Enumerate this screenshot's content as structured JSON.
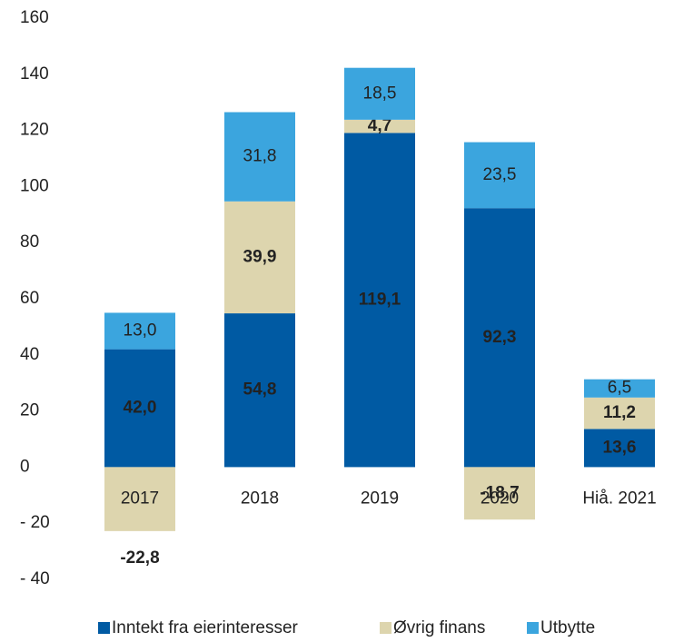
{
  "chart_data": {
    "type": "stacked_bar",
    "categories": [
      "2017",
      "2018",
      "2019",
      "2020",
      "Hiå. 2021"
    ],
    "series": [
      {
        "name": "Inntekt fra eierinteresser",
        "color": "#005aa3",
        "values": [
          42.0,
          54.8,
          119.1,
          92.3,
          13.6
        ],
        "value_labels": [
          "42,0",
          "54,8",
          "119,1",
          "92,3",
          "13,6"
        ]
      },
      {
        "name": "Øvrig finans",
        "color": "#ddd5ae",
        "values": [
          -22.8,
          39.9,
          4.7,
          -18.7,
          11.2
        ],
        "value_labels": [
          "-22,8",
          "39,9",
          "4,7",
          "-18,7",
          "11,2"
        ]
      },
      {
        "name": "Utbytte",
        "color": "#3ba5de",
        "values": [
          13.0,
          31.8,
          18.5,
          23.5,
          6.5
        ],
        "value_labels": [
          "13,0",
          "31,8",
          "18,5",
          "23,5",
          "6,5"
        ]
      }
    ],
    "ylim": [
      -40,
      160
    ],
    "yticks": [
      {
        "value": -40,
        "label": "- 40"
      },
      {
        "value": -20,
        "label": "- 20"
      },
      0,
      20,
      40,
      60,
      80,
      100,
      120,
      140,
      160
    ],
    "grid": false,
    "legend": "bottom"
  }
}
